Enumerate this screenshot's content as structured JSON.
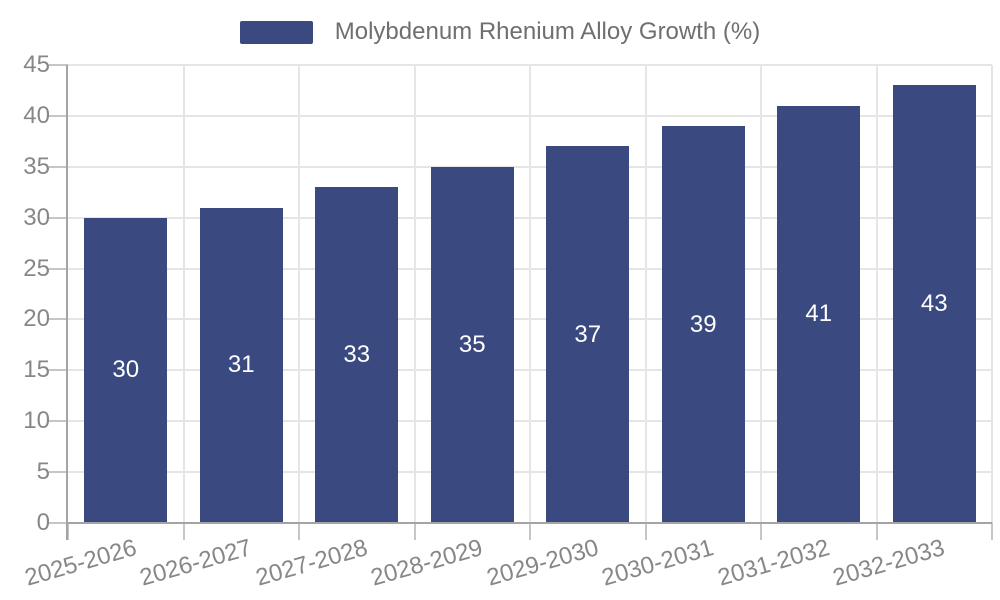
{
  "legend": {
    "label": "Molybdenum Rhenium Alloy Growth (%)"
  },
  "chart_data": {
    "type": "bar",
    "title": "",
    "categories": [
      "2025-2026",
      "2026-2027",
      "2027-2028",
      "2028-2029",
      "2029-2030",
      "2030-2031",
      "2031-2032",
      "2032-2033"
    ],
    "series": [
      {
        "name": "Molybdenum Rhenium Alloy Growth (%)",
        "values": [
          30,
          31,
          33,
          35,
          37,
          39,
          41,
          43
        ]
      }
    ],
    "value_labels": [
      "30",
      "31",
      "33",
      "35",
      "37",
      "39",
      "41",
      "43"
    ],
    "xlabel": "",
    "ylabel": "",
    "ylim": [
      0,
      45
    ],
    "ytick_step": 5,
    "y_ticks": [
      0,
      5,
      10,
      15,
      20,
      25,
      30,
      35,
      40,
      45
    ],
    "grid": true,
    "legend_position": "top-center",
    "colors": {
      "bar": "#3a4a80",
      "value_label": "#ffffff",
      "grid_line": "#e5e5e5",
      "axis_line": "#a4a4a4",
      "tick_mark": "#c6c6c6",
      "axis_label": "#878787",
      "legend_text": "#6f6f6f",
      "background": "#ffffff"
    }
  }
}
